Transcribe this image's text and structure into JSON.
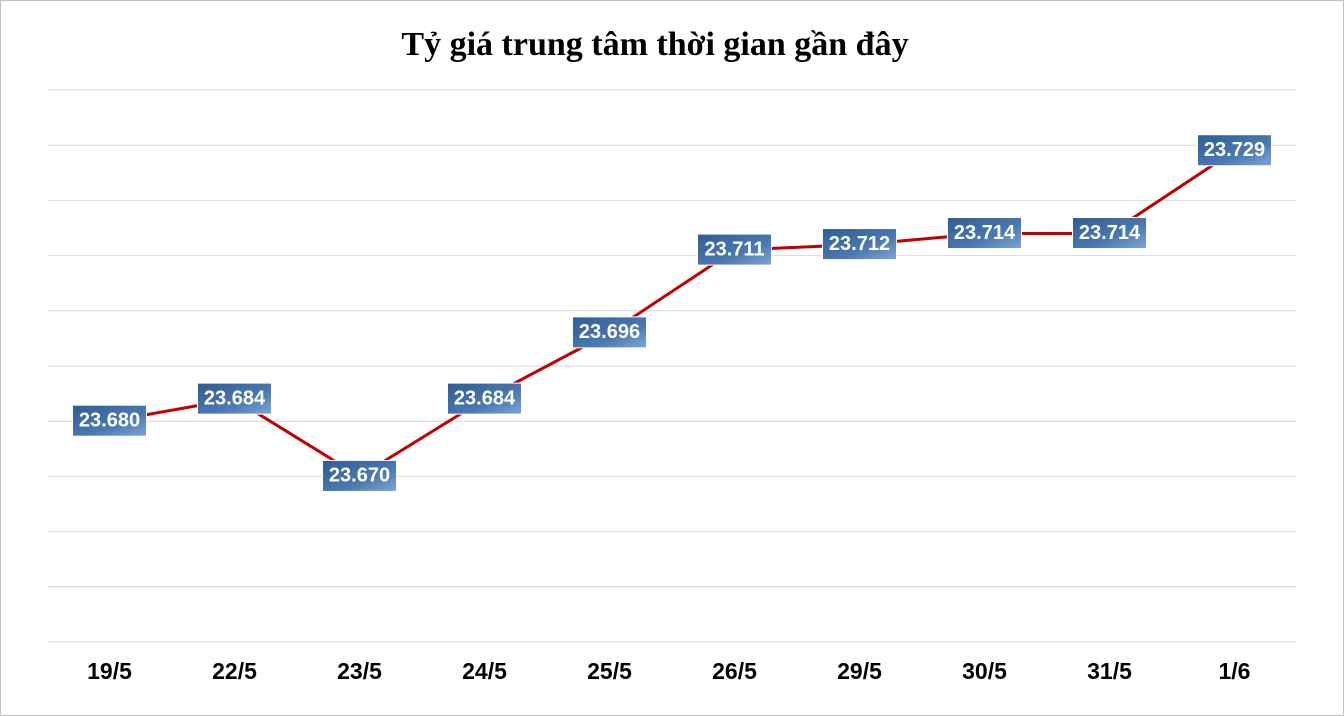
{
  "chart_data": {
    "type": "line",
    "title": "Tỷ giá trung tâm thời gian gần đây",
    "categories": [
      "19/5",
      "22/5",
      "23/5",
      "24/5",
      "25/5",
      "26/5",
      "29/5",
      "30/5",
      "31/5",
      "1/6"
    ],
    "series": [
      {
        "color": "#c00000",
        "values": [
          23680,
          23684,
          23670,
          23684,
          23696,
          23711,
          23712,
          23714,
          23714,
          23729
        ],
        "value_labels": [
          "23.680",
          "23.684",
          "23.670",
          "23.684",
          "23.696",
          "23.711",
          "23.712",
          "23.714",
          "23.714",
          "23.729"
        ]
      }
    ],
    "ylim": [
      23640,
      23740
    ],
    "yticks": [
      23640,
      23650,
      23660,
      23670,
      23680,
      23690,
      23700,
      23710,
      23720,
      23730,
      23740
    ],
    "grid": true
  }
}
